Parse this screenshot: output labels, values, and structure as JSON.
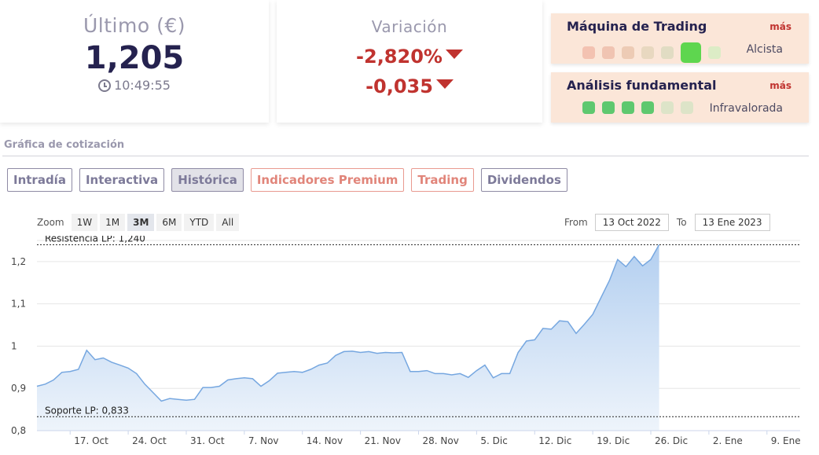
{
  "last_card": {
    "label": "Último (€)",
    "value": "1,205",
    "time": "10:49:55"
  },
  "var_card": {
    "label": "Variación",
    "pct": "-2,820%",
    "abs": "-0,035"
  },
  "trading_panel": {
    "title": "Máquina de Trading",
    "more": "más",
    "status": "Alcista",
    "dots": [
      "#f3c2b1",
      "#f0c4b2",
      "#edcbb5",
      "#e8d8c0",
      "#e1dcc3",
      "#5ed64f",
      "#dcecc6"
    ],
    "active_index": 5
  },
  "fund_panel": {
    "title": "Análisis fundamental",
    "more": "más",
    "status": "Infravalorada",
    "dots": [
      "#5ec86f",
      "#5ec86f",
      "#5ec86f",
      "#5ec86f",
      "#dde4c8",
      "#dde4c8"
    ]
  },
  "section_title": "Gráfica de cotización",
  "tabs": [
    {
      "label": "Intradía",
      "style": "normal"
    },
    {
      "label": "Interactiva",
      "style": "normal"
    },
    {
      "label": "Histórica",
      "style": "active"
    },
    {
      "label": "Indicadores Premium",
      "style": "premium"
    },
    {
      "label": "Trading",
      "style": "premium"
    },
    {
      "label": "Dividendos",
      "style": "normal"
    }
  ],
  "zoom": {
    "label": "Zoom",
    "options": [
      "1W",
      "1M",
      "3M",
      "6M",
      "YTD",
      "All"
    ],
    "selected": "3M"
  },
  "range": {
    "from_label": "From",
    "from_value": "13 Oct 2022",
    "to_label": "To",
    "to_value": "13 Ene 2023"
  },
  "colors": {
    "line": "#76a7e0",
    "fill_top": "#b3cff0",
    "fill_bottom": "#eef4fb"
  },
  "chart_data": {
    "type": "area",
    "ylim": [
      0.8,
      1.25
    ],
    "yticks": [
      0.8,
      0.9,
      1.0,
      1.1,
      1.2
    ],
    "ytick_labels": [
      "0,8",
      "0,9",
      "1",
      "1,1",
      "1,2"
    ],
    "xlim": [
      "2022-10-13",
      "2023-01-13"
    ],
    "xticks": [
      {
        "date": "2022-10-17",
        "label": "17. Oct"
      },
      {
        "date": "2022-10-24",
        "label": "24. Oct"
      },
      {
        "date": "2022-10-31",
        "label": "31. Oct"
      },
      {
        "date": "2022-11-07",
        "label": "7. Nov"
      },
      {
        "date": "2022-11-14",
        "label": "14. Nov"
      },
      {
        "date": "2022-11-21",
        "label": "21. Nov"
      },
      {
        "date": "2022-11-28",
        "label": "28. Nov"
      },
      {
        "date": "2022-12-05",
        "label": "5. Dic"
      },
      {
        "date": "2022-12-12",
        "label": "12. Dic"
      },
      {
        "date": "2022-12-19",
        "label": "19. Dic"
      },
      {
        "date": "2022-12-26",
        "label": "26. Dic"
      },
      {
        "date": "2023-01-02",
        "label": "2. Ene"
      },
      {
        "date": "2023-01-09",
        "label": "9. Ene"
      }
    ],
    "series": [
      {
        "points": [
          [
            "2022-10-13",
            0.905
          ],
          [
            "2022-10-14",
            0.91
          ],
          [
            "2022-10-15",
            0.92
          ],
          [
            "2022-10-16",
            0.938
          ],
          [
            "2022-10-17",
            0.94
          ],
          [
            "2022-10-18",
            0.945
          ],
          [
            "2022-10-19",
            0.99
          ],
          [
            "2022-10-20",
            0.968
          ],
          [
            "2022-10-21",
            0.972
          ],
          [
            "2022-10-22",
            0.962
          ],
          [
            "2022-10-23",
            0.955
          ],
          [
            "2022-10-24",
            0.948
          ],
          [
            "2022-10-25",
            0.935
          ],
          [
            "2022-10-26",
            0.91
          ],
          [
            "2022-10-27",
            0.89
          ],
          [
            "2022-10-28",
            0.87
          ],
          [
            "2022-10-29",
            0.876
          ],
          [
            "2022-10-30",
            0.874
          ],
          [
            "2022-10-31",
            0.872
          ],
          [
            "2022-11-01",
            0.874
          ],
          [
            "2022-11-02",
            0.902
          ],
          [
            "2022-11-03",
            0.902
          ],
          [
            "2022-11-04",
            0.905
          ],
          [
            "2022-11-05",
            0.92
          ],
          [
            "2022-11-06",
            0.923
          ],
          [
            "2022-11-07",
            0.925
          ],
          [
            "2022-11-08",
            0.923
          ],
          [
            "2022-11-09",
            0.905
          ],
          [
            "2022-11-10",
            0.918
          ],
          [
            "2022-11-11",
            0.936
          ],
          [
            "2022-11-12",
            0.938
          ],
          [
            "2022-11-13",
            0.94
          ],
          [
            "2022-11-14",
            0.938
          ],
          [
            "2022-11-15",
            0.945
          ],
          [
            "2022-11-16",
            0.955
          ],
          [
            "2022-11-17",
            0.96
          ],
          [
            "2022-11-18",
            0.978
          ],
          [
            "2022-11-19",
            0.987
          ],
          [
            "2022-11-20",
            0.988
          ],
          [
            "2022-11-21",
            0.985
          ],
          [
            "2022-11-22",
            0.987
          ],
          [
            "2022-11-23",
            0.983
          ],
          [
            "2022-11-24",
            0.985
          ],
          [
            "2022-11-25",
            0.984
          ],
          [
            "2022-11-26",
            0.985
          ],
          [
            "2022-11-27",
            0.94
          ],
          [
            "2022-11-28",
            0.94
          ],
          [
            "2022-11-29",
            0.942
          ],
          [
            "2022-11-30",
            0.935
          ],
          [
            "2022-12-01",
            0.935
          ],
          [
            "2022-12-02",
            0.932
          ],
          [
            "2022-12-03",
            0.935
          ],
          [
            "2022-12-04",
            0.926
          ],
          [
            "2022-12-05",
            0.942
          ],
          [
            "2022-12-06",
            0.955
          ],
          [
            "2022-12-07",
            0.925
          ],
          [
            "2022-12-08",
            0.935
          ],
          [
            "2022-12-09",
            0.935
          ],
          [
            "2022-12-10",
            0.985
          ],
          [
            "2022-12-11",
            1.012
          ],
          [
            "2022-12-12",
            1.015
          ],
          [
            "2022-12-13",
            1.042
          ],
          [
            "2022-12-14",
            1.04
          ],
          [
            "2022-12-15",
            1.06
          ],
          [
            "2022-12-16",
            1.058
          ],
          [
            "2022-12-17",
            1.03
          ],
          [
            "2022-12-18",
            1.052
          ],
          [
            "2022-12-19",
            1.075
          ],
          [
            "2022-12-20",
            1.115
          ],
          [
            "2022-12-21",
            1.155
          ],
          [
            "2022-12-22",
            1.205
          ],
          [
            "2022-12-23",
            1.188
          ],
          [
            "2022-12-24",
            1.212
          ],
          [
            "2022-12-25",
            1.19
          ],
          [
            "2022-12-26",
            1.205
          ],
          [
            "2022-12-27",
            1.24
          ]
        ]
      }
    ],
    "annotations": [
      {
        "label": "Resistencia LP: 1,240",
        "value": 1.24
      },
      {
        "label": "Soporte LP: 0,833",
        "value": 0.833
      }
    ]
  }
}
